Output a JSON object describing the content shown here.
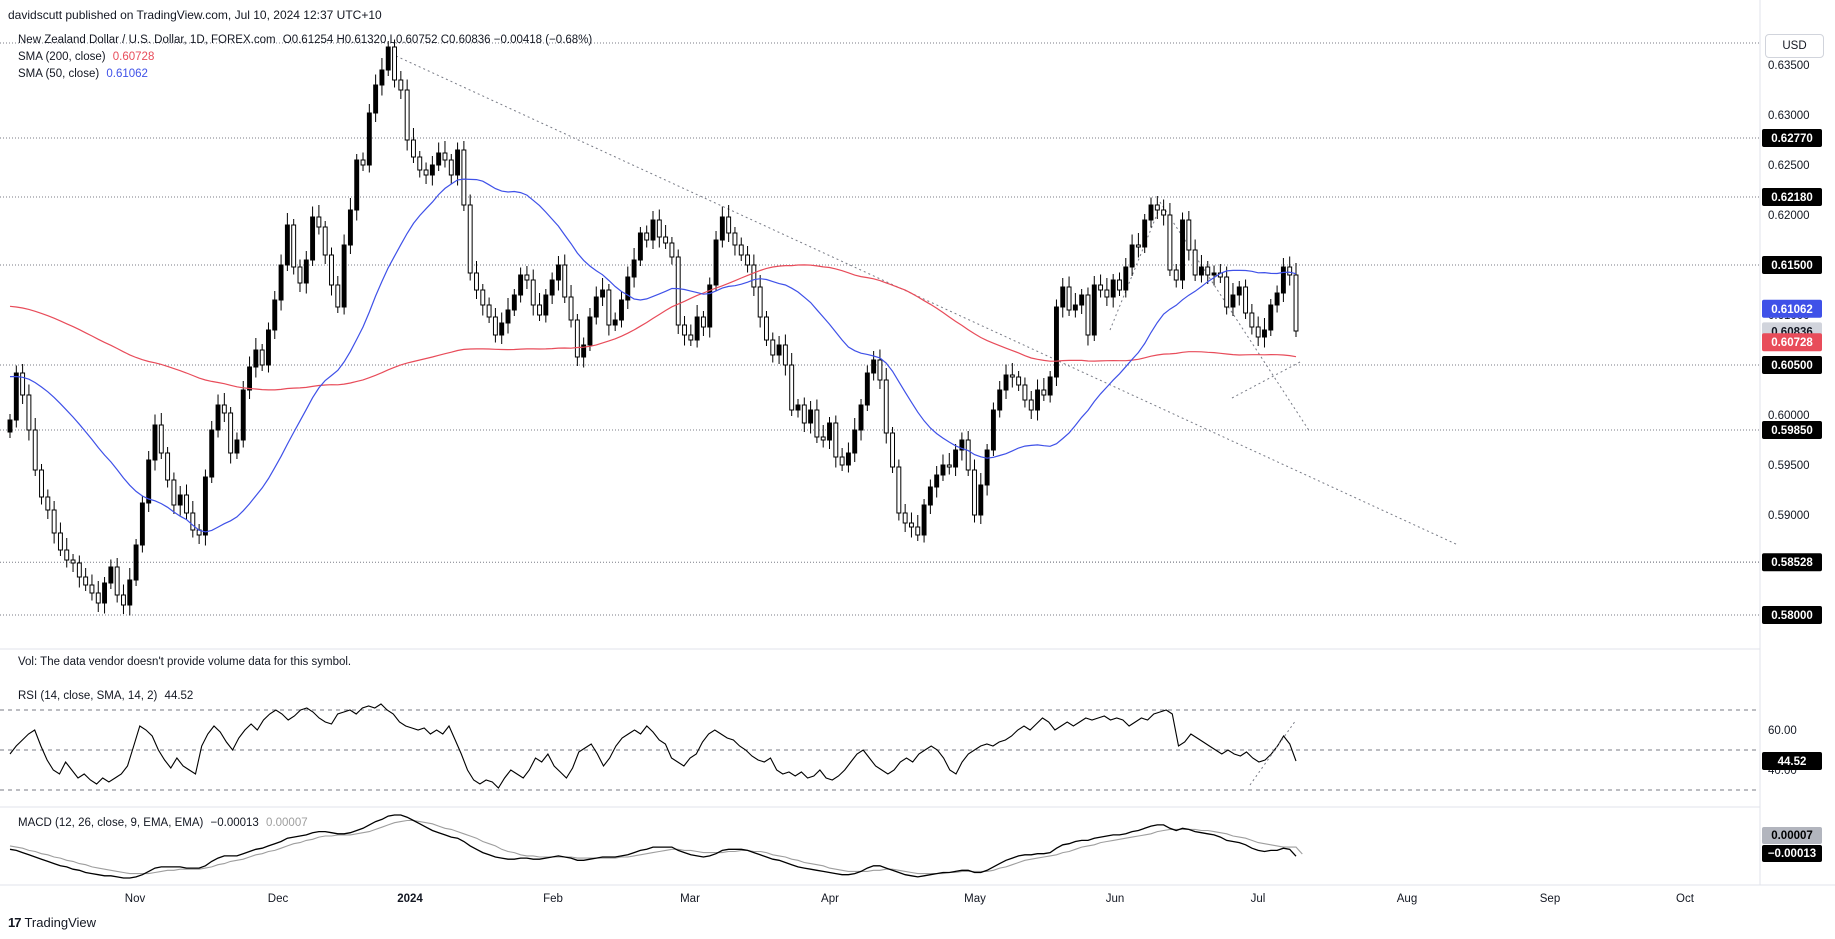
{
  "header": {
    "published": "davidscutt published on TradingView.com, Jul 10, 2024 12:37 UTC+10",
    "symbol": "New Zealand Dollar / U.S. Dollar, 1D, FOREX.com",
    "ohlc": "O0.61254  H0.61320  L0.60752  C0.60836  −0.00418 (−0.68%)",
    "sma200_label": "SMA (200, close)",
    "sma200_value": "0.60728",
    "sma50_label": "SMA (50, close)",
    "sma50_value": "0.61062",
    "currency": "USD"
  },
  "volume_note": "Vol: The data vendor doesn't provide volume data for this symbol.",
  "rsi_legend": "RSI (14, close, SMA, 14, 2)",
  "rsi_value": "44.52",
  "macd_legend": "MACD (12, 26, close, 9, EMA, EMA)",
  "macd_value": "−0.00013",
  "macd_signal_value": "0.00007",
  "footer": "TradingView",
  "colors": {
    "up": "#000000",
    "down": "#ffffff",
    "sma50": "#3f51e8",
    "sma200": "#e84c5a",
    "rsi": "#000000",
    "macd": "#000000",
    "signal": "#9e9e9e",
    "label_bg": "#000000",
    "price_tag": "#d1d4dc"
  },
  "chart_data": [
    {
      "type": "candlestick",
      "title": "New Zealand Dollar / U.S. Dollar, 1D, FOREX.com",
      "ylim": [
        0.5775,
        0.6385
      ],
      "x_ticks": [
        "Nov",
        "Dec",
        "2024",
        "Feb",
        "Mar",
        "Apr",
        "May",
        "Jun",
        "Jul",
        "Aug",
        "Sep",
        "Oct"
      ],
      "y_ticks": [
        "0.63500",
        "0.63000",
        "0.62500",
        "0.62000",
        "0.61500",
        "0.61000",
        "0.60500",
        "0.60000",
        "0.59500",
        "0.59000",
        "0.58500",
        "0.58000"
      ],
      "levels": [
        {
          "value": 0.6277,
          "label": "0.62770"
        },
        {
          "value": 0.6218,
          "label": "0.62180"
        },
        {
          "value": 0.615,
          "label": "0.61500"
        },
        {
          "value": 0.605,
          "label": "0.60500"
        },
        {
          "value": 0.5985,
          "label": "0.59850"
        },
        {
          "value": 0.58528,
          "label": "0.58528"
        },
        {
          "value": 0.58,
          "label": "0.58000"
        }
      ],
      "last_price": {
        "value": 0.60836,
        "label": "0.60836"
      },
      "sma50_last": {
        "value": 0.61062,
        "label": "0.61062"
      },
      "sma200_last": {
        "value": 0.60728,
        "label": "0.60728"
      },
      "closes": [
        0.5995,
        0.6042,
        0.602,
        0.5985,
        0.5945,
        0.5918,
        0.5905,
        0.5882,
        0.5865,
        0.5855,
        0.5852,
        0.5838,
        0.583,
        0.5822,
        0.5812,
        0.5832,
        0.5848,
        0.582,
        0.581,
        0.5835,
        0.587,
        0.5912,
        0.5955,
        0.599,
        0.5962,
        0.5935,
        0.591,
        0.592,
        0.5902,
        0.5885,
        0.588,
        0.5938,
        0.5985,
        0.601,
        0.6002,
        0.5962,
        0.5975,
        0.6025,
        0.6048,
        0.6065,
        0.605,
        0.6085,
        0.6115,
        0.615,
        0.619,
        0.6148,
        0.6132,
        0.6155,
        0.6198,
        0.6188,
        0.616,
        0.613,
        0.6108,
        0.617,
        0.6205,
        0.6255,
        0.625,
        0.6302,
        0.633,
        0.6345,
        0.6368,
        0.6335,
        0.6325,
        0.6275,
        0.6258,
        0.6245,
        0.624,
        0.625,
        0.6262,
        0.6255,
        0.624,
        0.6265,
        0.621,
        0.6142,
        0.6125,
        0.611,
        0.6098,
        0.608,
        0.6092,
        0.6105,
        0.612,
        0.614,
        0.6135,
        0.611,
        0.61,
        0.612,
        0.6135,
        0.615,
        0.6118,
        0.6095,
        0.6058,
        0.607,
        0.6098,
        0.6118,
        0.6125,
        0.609,
        0.6095,
        0.6115,
        0.6138,
        0.6155,
        0.6182,
        0.6175,
        0.6195,
        0.6178,
        0.6172,
        0.6158,
        0.609,
        0.608,
        0.6075,
        0.6098,
        0.6088,
        0.613,
        0.6175,
        0.6198,
        0.6182,
        0.617,
        0.616,
        0.615,
        0.6128,
        0.6098,
        0.6075,
        0.606,
        0.607,
        0.605,
        0.6005,
        0.601,
        0.5992,
        0.6005,
        0.5978,
        0.5975,
        0.5992,
        0.5958,
        0.595,
        0.5962,
        0.5985,
        0.601,
        0.6042,
        0.6055,
        0.6035,
        0.5982,
        0.5948,
        0.5902,
        0.5892,
        0.5888,
        0.588,
        0.591,
        0.5928,
        0.594,
        0.595,
        0.5948,
        0.5965,
        0.5975,
        0.5945,
        0.59,
        0.593,
        0.5965,
        0.6005,
        0.6025,
        0.604,
        0.6038,
        0.603,
        0.6015,
        0.6005,
        0.6025,
        0.602,
        0.6038,
        0.6108,
        0.6128,
        0.6105,
        0.611,
        0.612,
        0.608,
        0.613,
        0.6125,
        0.6118,
        0.6135,
        0.6125,
        0.6148,
        0.617,
        0.6168,
        0.6195,
        0.621,
        0.6205,
        0.62,
        0.6145,
        0.6135,
        0.6195,
        0.6165,
        0.614,
        0.6148,
        0.614,
        0.6142,
        0.6138,
        0.6108,
        0.612,
        0.6128,
        0.6102,
        0.6088,
        0.6078,
        0.6085,
        0.611,
        0.6122,
        0.6148,
        0.614,
        0.6084
      ]
    },
    {
      "type": "line",
      "title": "RSI (14, close, SMA, 14, 2)",
      "ylim": [
        25,
        80
      ],
      "y_ticks": [
        "60.00",
        "40.00"
      ],
      "bands": [
        70,
        50,
        30
      ],
      "rsi": [
        48,
        52,
        55,
        58,
        60,
        52,
        45,
        40,
        38,
        44,
        40,
        36,
        38,
        35,
        33,
        36,
        34,
        36,
        38,
        42,
        52,
        62,
        60,
        57,
        50,
        45,
        41,
        46,
        42,
        40,
        38,
        52,
        58,
        62,
        59,
        54,
        50,
        56,
        60,
        63,
        60,
        65,
        68,
        70,
        68,
        65,
        67,
        70,
        71,
        69,
        66,
        64,
        63,
        68,
        69,
        70,
        68,
        71,
        72,
        71,
        73,
        70,
        68,
        64,
        62,
        61,
        60,
        61,
        58,
        60,
        58,
        62,
        55,
        48,
        40,
        35,
        33,
        35,
        34,
        31,
        36,
        40,
        38,
        36,
        40,
        46,
        44,
        48,
        42,
        39,
        36,
        41,
        49,
        51,
        53,
        48,
        42,
        46,
        52,
        56,
        58,
        60,
        58,
        62,
        59,
        55,
        53,
        46,
        44,
        42,
        46,
        48,
        54,
        58,
        60,
        58,
        56,
        55,
        52,
        50,
        47,
        45,
        44,
        46,
        40,
        38,
        39,
        37,
        39,
        36,
        37,
        40,
        36,
        35,
        37,
        40,
        44,
        48,
        50,
        46,
        42,
        40,
        38,
        40,
        44,
        46,
        44,
        48,
        50,
        52,
        50,
        46,
        40,
        38,
        44,
        48,
        50,
        52,
        53,
        52,
        54,
        55,
        57,
        60,
        62,
        60,
        63,
        66,
        64,
        60,
        62,
        64,
        62,
        64,
        66,
        65,
        66,
        67,
        65,
        66,
        65,
        62,
        64,
        66,
        65,
        68,
        69,
        70,
        68,
        52,
        54,
        58,
        56,
        54,
        52,
        50,
        48,
        50,
        48,
        47,
        49,
        46,
        44,
        45,
        48,
        52,
        57,
        53,
        44.52
      ]
    },
    {
      "type": "line",
      "title": "MACD (12, 26, close, 9, EMA, EMA)",
      "series": [
        {
          "name": "MACD",
          "last": "−0.00013"
        },
        {
          "name": "Signal",
          "last": "0.00007"
        }
      ],
      "macd": [
        0.0005,
        0.0004,
        0.0002,
        0.0,
        -0.0002,
        -0.0004,
        -0.0006,
        -0.0008,
        -0.001,
        -0.0011,
        -0.0013,
        -0.0014,
        -0.0016,
        -0.0017,
        -0.0018,
        -0.0019,
        -0.0019,
        -0.002,
        -0.0021,
        -0.0021,
        -0.002,
        -0.0018,
        -0.0015,
        -0.0012,
        -0.0011,
        -0.0011,
        -0.0011,
        -0.0011,
        -0.0012,
        -0.0012,
        -0.0012,
        -0.001,
        -0.0006,
        -0.0003,
        -0.0001,
        -0.0001,
        -0.0001,
        0.0001,
        0.0003,
        0.0005,
        0.0006,
        0.0008,
        0.001,
        0.0012,
        0.0015,
        0.0016,
        0.0017,
        0.0018,
        0.002,
        0.0021,
        0.0021,
        0.002,
        0.0019,
        0.0019,
        0.002,
        0.0022,
        0.0024,
        0.0027,
        0.003,
        0.0032,
        0.0035,
        0.0036,
        0.0036,
        0.0034,
        0.0031,
        0.0028,
        0.0025,
        0.0022,
        0.002,
        0.0018,
        0.0016,
        0.0015,
        0.0012,
        0.0008,
        0.0005,
        0.0002,
        0.0,
        -0.0002,
        -0.0003,
        -0.0004,
        -0.0004,
        -0.0003,
        -0.0003,
        -0.0004,
        -0.0004,
        -0.0003,
        -0.0002,
        -0.0001,
        -0.0002,
        -0.0003,
        -0.0005,
        -0.0005,
        -0.0004,
        -0.0003,
        -0.0002,
        -0.0002,
        -0.0002,
        -0.0001,
        0.0,
        0.0002,
        0.0004,
        0.0005,
        0.0007,
        0.0007,
        0.0007,
        0.0007,
        0.0004,
        0.0002,
        0.0,
        -0.0001,
        -0.0002,
        -0.0001,
        0.0001,
        0.0004,
        0.0005,
        0.0005,
        0.0005,
        0.0004,
        0.0002,
        0.0,
        -0.0002,
        -0.0004,
        -0.0005,
        -0.0007,
        -0.0009,
        -0.0011,
        -0.0012,
        -0.0013,
        -0.0014,
        -0.0015,
        -0.0016,
        -0.0017,
        -0.0018,
        -0.0018,
        -0.0017,
        -0.0015,
        -0.0012,
        -0.001,
        -0.001,
        -0.0012,
        -0.0014,
        -0.0016,
        -0.0018,
        -0.0019,
        -0.002,
        -0.0019,
        -0.0018,
        -0.0017,
        -0.0016,
        -0.0016,
        -0.0015,
        -0.0014,
        -0.0014,
        -0.0016,
        -0.0016,
        -0.0014,
        -0.0011,
        -0.0008,
        -0.0005,
        -0.0003,
        -0.0001,
        0.0,
        0.0,
        0.0001,
        0.0001,
        0.0002,
        0.0006,
        0.0009,
        0.001,
        0.0012,
        0.0013,
        0.0013,
        0.0015,
        0.0016,
        0.0017,
        0.0018,
        0.0018,
        0.0019,
        0.0021,
        0.0022,
        0.0024,
        0.0026,
        0.0027,
        0.0027,
        0.0024,
        0.0022,
        0.0024,
        0.0023,
        0.0021,
        0.002,
        0.0019,
        0.0018,
        0.0016,
        0.0013,
        0.0012,
        0.0011,
        0.0009,
        0.0006,
        0.0004,
        0.0003,
        0.0004,
        0.0004,
        0.0006,
        0.0005,
        -0.00013
      ],
      "signal": [
        0.0008,
        0.0007,
        0.0006,
        0.0004,
        0.0003,
        0.0001,
        0.0,
        -0.0002,
        -0.0003,
        -0.0005,
        -0.0006,
        -0.0008,
        -0.0009,
        -0.0011,
        -0.0012,
        -0.0013,
        -0.0014,
        -0.0015,
        -0.0016,
        -0.0017,
        -0.0017,
        -0.0017,
        -0.0017,
        -0.0016,
        -0.0015,
        -0.0014,
        -0.0014,
        -0.0013,
        -0.0013,
        -0.0013,
        -0.0013,
        -0.0012,
        -0.0011,
        -0.0009,
        -0.0008,
        -0.0006,
        -0.0005,
        -0.0004,
        -0.0002,
        0.0,
        0.0001,
        0.0003,
        0.0004,
        0.0006,
        0.0008,
        0.001,
        0.0011,
        0.0013,
        0.0014,
        0.0016,
        0.0017,
        0.0017,
        0.0018,
        0.0018,
        0.0018,
        0.0019,
        0.002,
        0.0021,
        0.0023,
        0.0025,
        0.0027,
        0.0029,
        0.003,
        0.0031,
        0.0031,
        0.003,
        0.0029,
        0.0028,
        0.0026,
        0.0024,
        0.0023,
        0.0021,
        0.0019,
        0.0017,
        0.0015,
        0.0012,
        0.001,
        0.0008,
        0.0005,
        0.0003,
        0.0002,
        0.0,
        -0.0001,
        -0.0001,
        -0.0002,
        -0.0002,
        -0.0002,
        -0.0002,
        -0.0002,
        -0.0002,
        -0.0003,
        -0.0003,
        -0.0003,
        -0.0003,
        -0.0003,
        -0.0003,
        -0.0003,
        -0.0002,
        -0.0002,
        -0.0001,
        0.0,
        0.0001,
        0.0002,
        0.0003,
        0.0004,
        0.0005,
        0.0005,
        0.0004,
        0.0004,
        0.0003,
        0.0002,
        0.0002,
        0.0002,
        0.0002,
        0.0003,
        0.0003,
        0.0004,
        0.0004,
        0.0003,
        0.0003,
        0.0002,
        0.0,
        -0.0001,
        -0.0002,
        -0.0004,
        -0.0005,
        -0.0007,
        -0.0008,
        -0.0009,
        -0.001,
        -0.0012,
        -0.0013,
        -0.0014,
        -0.0015,
        -0.0015,
        -0.0015,
        -0.0015,
        -0.0014,
        -0.0014,
        -0.0013,
        -0.0013,
        -0.0014,
        -0.0015,
        -0.0016,
        -0.0017,
        -0.0017,
        -0.0017,
        -0.0017,
        -0.0017,
        -0.0016,
        -0.0016,
        -0.0015,
        -0.0015,
        -0.0015,
        -0.0015,
        -0.0015,
        -0.0014,
        -0.0012,
        -0.0011,
        -0.0009,
        -0.0007,
        -0.0005,
        -0.0004,
        -0.0003,
        -0.0002,
        -0.0001,
        0.0,
        0.0002,
        0.0003,
        0.0005,
        0.0007,
        0.0008,
        0.0009,
        0.0011,
        0.0012,
        0.0013,
        0.0014,
        0.0015,
        0.0016,
        0.0017,
        0.0018,
        0.0019,
        0.0021,
        0.0022,
        0.0023,
        0.0023,
        0.0023,
        0.0023,
        0.0023,
        0.0022,
        0.0022,
        0.0021,
        0.002,
        0.0019,
        0.0017,
        0.0016,
        0.0015,
        0.0013,
        0.0011,
        0.001,
        0.0009,
        0.0008,
        0.0007,
        0.0007,
        0.0007,
        7e-05
      ]
    }
  ]
}
